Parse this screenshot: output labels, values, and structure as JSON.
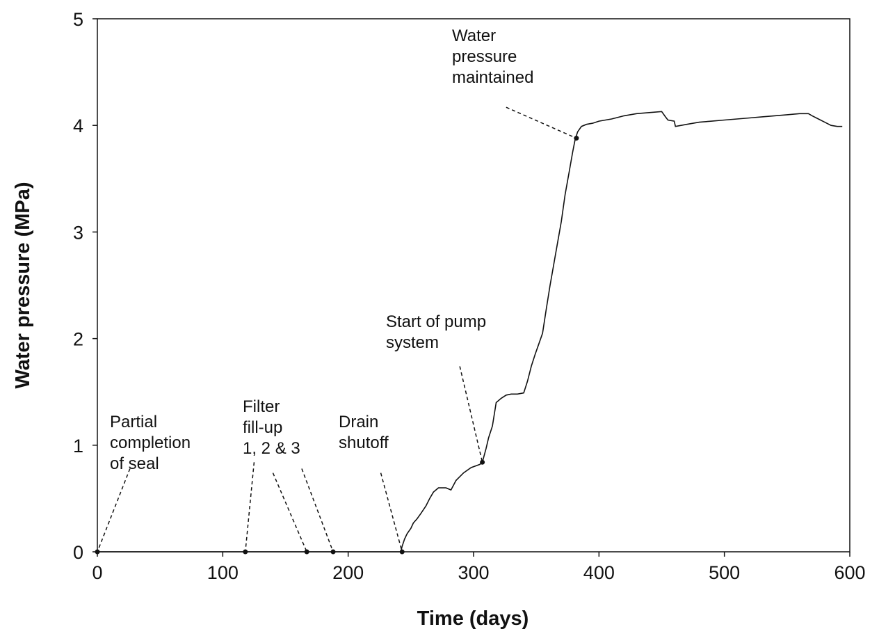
{
  "chart_data": {
    "type": "line",
    "title": "",
    "xlabel": "Time (days)",
    "ylabel": "Water pressure (MPa)",
    "xlim": [
      0,
      600
    ],
    "ylim": [
      0,
      5
    ],
    "x_ticks": [
      0,
      100,
      200,
      300,
      400,
      500,
      600
    ],
    "y_ticks": [
      0,
      1,
      2,
      3,
      4,
      5
    ],
    "grid": false,
    "legend": "none",
    "series": [
      {
        "x": [
          0,
          100,
          200,
          242,
          243,
          245,
          247,
          250,
          252,
          255,
          258,
          262,
          265,
          268,
          272,
          278,
          282,
          286,
          292,
          298,
          305,
          307,
          310,
          312,
          315,
          318,
          322,
          326,
          330,
          335,
          340,
          343,
          346,
          349,
          352,
          355,
          358,
          361,
          364,
          367,
          370,
          373,
          376,
          379,
          381,
          383,
          386,
          390,
          395,
          400,
          410,
          420,
          430,
          440,
          450,
          453,
          455,
          460,
          461,
          470,
          480,
          490,
          500,
          510,
          520,
          530,
          540,
          550,
          560,
          567,
          570,
          575,
          580,
          585,
          590,
          594
        ],
        "y": [
          0,
          0,
          0,
          0,
          0.05,
          0.12,
          0.17,
          0.22,
          0.27,
          0.31,
          0.36,
          0.43,
          0.5,
          0.56,
          0.6,
          0.6,
          0.58,
          0.67,
          0.74,
          0.79,
          0.82,
          0.84,
          0.97,
          1.07,
          1.18,
          1.4,
          1.44,
          1.47,
          1.48,
          1.48,
          1.49,
          1.6,
          1.74,
          1.85,
          1.95,
          2.05,
          2.28,
          2.5,
          2.7,
          2.9,
          3.1,
          3.35,
          3.55,
          3.75,
          3.87,
          3.94,
          3.99,
          4.01,
          4.02,
          4.04,
          4.06,
          4.09,
          4.11,
          4.12,
          4.13,
          4.08,
          4.05,
          4.04,
          3.99,
          4.01,
          4.03,
          4.04,
          4.05,
          4.06,
          4.07,
          4.08,
          4.09,
          4.1,
          4.11,
          4.11,
          4.09,
          4.06,
          4.03,
          4.0,
          3.99,
          3.99
        ]
      }
    ],
    "markers": [
      {
        "x": 0,
        "y": 0
      },
      {
        "x": 118,
        "y": 0
      },
      {
        "x": 167,
        "y": 0
      },
      {
        "x": 188,
        "y": 0
      },
      {
        "x": 243,
        "y": 0
      },
      {
        "x": 307,
        "y": 0.84
      },
      {
        "x": 382,
        "y": 3.88
      }
    ],
    "annotations": [
      {
        "lines": [
          "Partial",
          "completion",
          "of seal"
        ],
        "target": {
          "x": 0,
          "y": 0
        },
        "anchor": {
          "x": 26,
          "y": 0.78
        }
      },
      {
        "lines": [
          "Filter",
          "fill-up",
          "1, 2 & 3"
        ],
        "targets": [
          {
            "x": 118,
            "y": 0
          },
          {
            "x": 167,
            "y": 0
          },
          {
            "x": 188,
            "y": 0
          }
        ],
        "anchors": [
          {
            "x": 125,
            "y": 0.84
          },
          {
            "x": 140,
            "y": 0.74
          },
          {
            "x": 163,
            "y": 0.78
          }
        ]
      },
      {
        "lines": [
          "Drain",
          "shutoff"
        ],
        "target": {
          "x": 243,
          "y": 0
        },
        "anchor": {
          "x": 226,
          "y": 0.74
        }
      },
      {
        "lines": [
          "Start of pump",
          "system"
        ],
        "target": {
          "x": 307,
          "y": 0.84
        },
        "anchor": {
          "x": 289,
          "y": 1.74
        }
      },
      {
        "lines": [
          "Water",
          "pressure",
          "maintained"
        ],
        "target": {
          "x": 382,
          "y": 3.88
        },
        "anchor": {
          "x": 326,
          "y": 4.17
        }
      }
    ]
  }
}
